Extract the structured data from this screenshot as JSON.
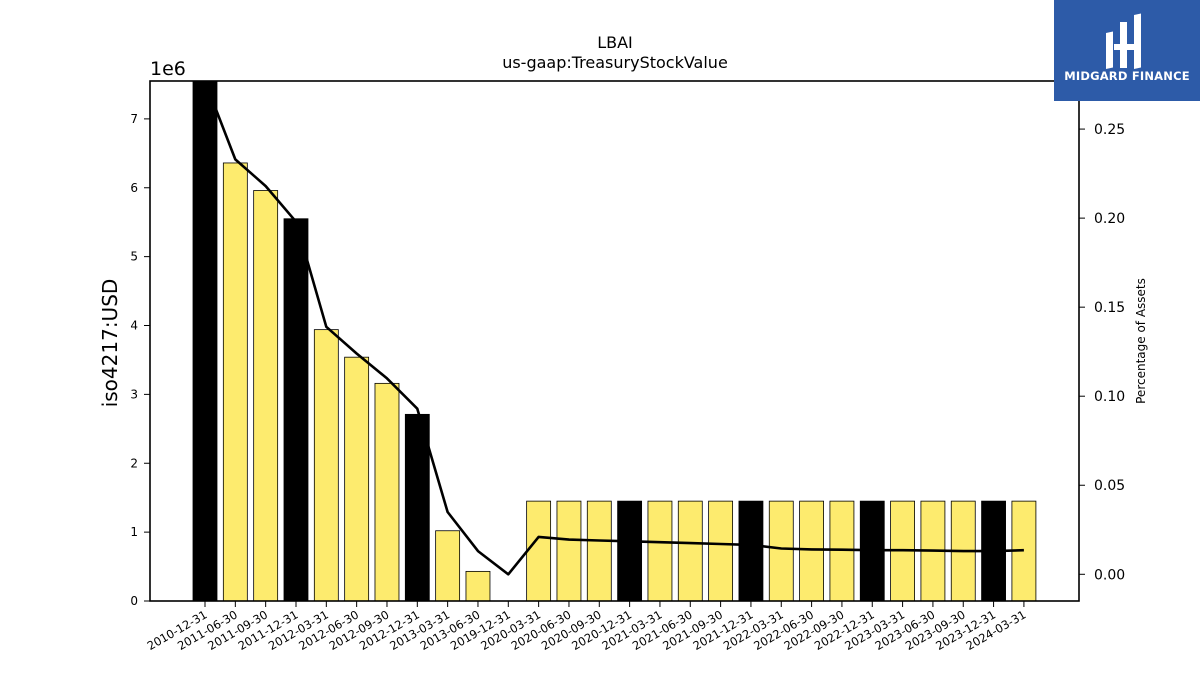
{
  "chart_data": {
    "type": "bar",
    "title": "LBAI",
    "subtitle": "us-gaap:TreasuryStockValue",
    "ylabel": "iso4217:USD",
    "y_offset_label": "1e6",
    "y2label": "Percentage of Assets",
    "ylim": [
      0,
      7.55
    ],
    "y2lim": [
      -0.015,
      0.277
    ],
    "yticks": [
      "0",
      "1",
      "2",
      "3",
      "4",
      "5",
      "6",
      "7"
    ],
    "y2ticks": [
      "0.00",
      "0.05",
      "0.10",
      "0.15",
      "0.20",
      "0.25"
    ],
    "grid": false,
    "bar_colors": {
      "year_end": "#000000",
      "interim": "#fdeb6e"
    },
    "line_color": "#000000",
    "categories": [
      "2010-12-31",
      "2011-06-30",
      "2011-09-30",
      "2011-12-31",
      "2012-03-31",
      "2012-06-30",
      "2012-09-30",
      "2012-12-31",
      "2013-03-31",
      "2013-06-30",
      "2019-12-31",
      "2020-03-31",
      "2020-06-30",
      "2020-09-30",
      "2020-12-31",
      "2021-03-31",
      "2021-06-30",
      "2021-09-30",
      "2021-12-31",
      "2022-03-31",
      "2022-06-30",
      "2022-09-30",
      "2022-12-31",
      "2023-03-31",
      "2023-06-30",
      "2023-09-30",
      "2023-12-31",
      "2024-03-31"
    ],
    "series": [
      {
        "type": "bar",
        "values": [
          7.55,
          6.36,
          5.96,
          5.55,
          3.94,
          3.54,
          3.16,
          2.71,
          1.02,
          0.43,
          0,
          1.45,
          1.45,
          1.45,
          1.45,
          1.45,
          1.45,
          1.45,
          1.45,
          1.45,
          1.45,
          1.45,
          1.45,
          1.45,
          1.45,
          1.45,
          1.45,
          1.45
        ],
        "year_end": [
          true,
          false,
          false,
          true,
          false,
          false,
          false,
          true,
          false,
          false,
          true,
          false,
          false,
          false,
          true,
          false,
          false,
          false,
          true,
          false,
          false,
          false,
          true,
          false,
          false,
          false,
          true,
          false
        ]
      },
      {
        "type": "line",
        "axis": "right",
        "values": [
          0.285,
          0.233,
          0.218,
          0.198,
          0.139,
          0.124,
          0.11,
          0.093,
          0.035,
          0.013,
          0.0,
          0.021,
          0.0195,
          0.019,
          0.0185,
          0.018,
          0.0175,
          0.017,
          0.0165,
          0.0145,
          0.014,
          0.0138,
          0.0135,
          0.0135,
          0.0133,
          0.013,
          0.013,
          0.0135
        ]
      }
    ]
  },
  "logo": {
    "text": "MIDGARD FINANCE"
  }
}
